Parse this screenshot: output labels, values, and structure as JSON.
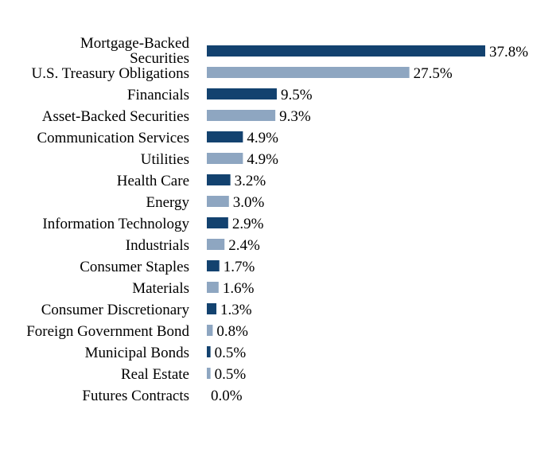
{
  "chart_data": {
    "type": "bar",
    "orientation": "horizontal",
    "categories": [
      "Mortgage-Backed Securities",
      "U.S. Treasury Obligations",
      "Financials",
      "Asset-Backed Securities",
      "Communication Services",
      "Utilities",
      "Health Care",
      "Energy",
      "Information Technology",
      "Industrials",
      "Consumer Staples",
      "Materials",
      "Consumer Discretionary",
      "Foreign Government Bond",
      "Municipal Bonds",
      "Real Estate",
      "Futures Contracts"
    ],
    "values": [
      37.8,
      27.5,
      9.5,
      9.3,
      4.9,
      4.9,
      3.2,
      3.0,
      2.9,
      2.4,
      1.7,
      1.6,
      1.3,
      0.8,
      0.5,
      0.5,
      0.0
    ],
    "value_labels": [
      "37.8%",
      "27.5%",
      "9.5%",
      "9.3%",
      "4.9%",
      "4.9%",
      "3.2%",
      "3.0%",
      "2.9%",
      "2.4%",
      "1.7%",
      "1.6%",
      "1.3%",
      "0.8%",
      "0.5%",
      "0.5%",
      "0.0%"
    ],
    "colors": [
      "#13426f",
      "#8ea6c1"
    ],
    "title": "",
    "xlabel": "",
    "ylabel": "",
    "xlim": [
      0,
      38
    ],
    "grid": false,
    "legend": "none"
  }
}
